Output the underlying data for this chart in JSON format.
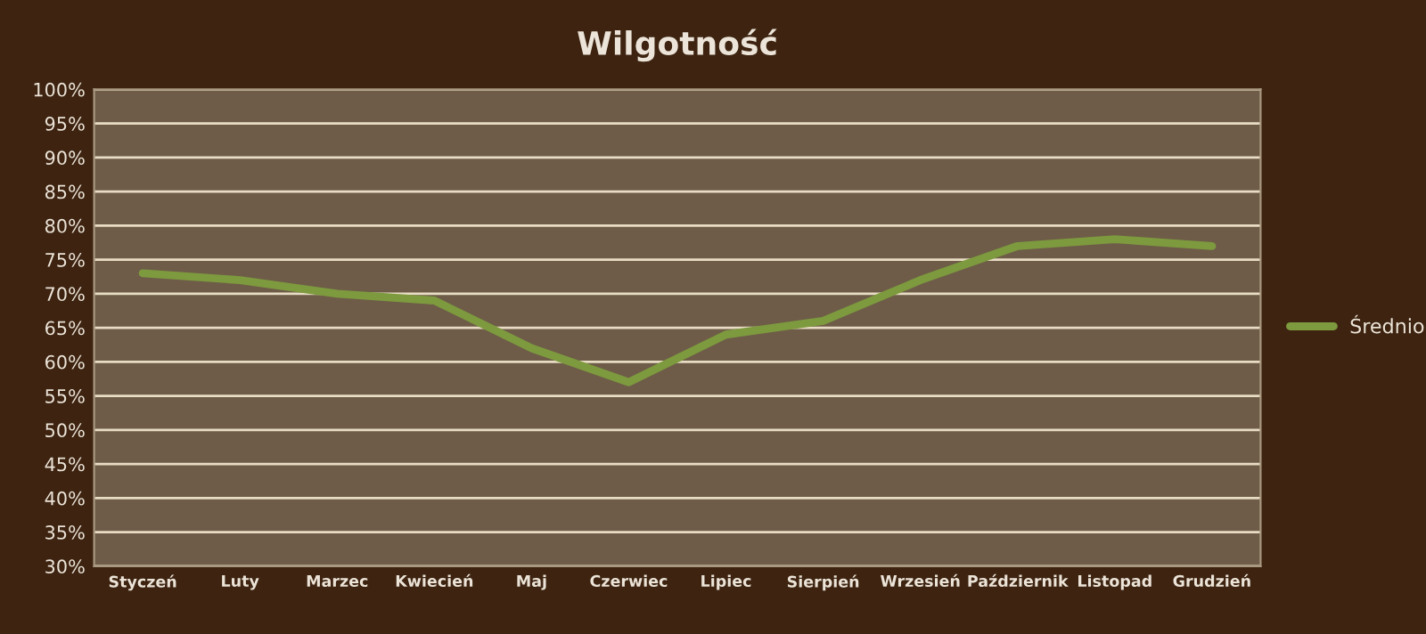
{
  "chart_data": {
    "type": "line",
    "title": "Wilgotność",
    "categories": [
      "Styczeń",
      "Luty",
      "Marzec",
      "Kwiecień",
      "Maj",
      "Czerwiec",
      "Lipiec",
      "Sierpień",
      "Wrzesień",
      "Październik",
      "Listopad",
      "Grudzień"
    ],
    "series": [
      {
        "name": "Średnio",
        "color": "#7d9a3e",
        "values": [
          73,
          72,
          70,
          69,
          62,
          57,
          64,
          66,
          72,
          77,
          78,
          77
        ]
      }
    ],
    "ylim": [
      30,
      100
    ],
    "yticks": [
      {
        "value": 30,
        "label": "30%"
      },
      {
        "value": 35,
        "label": "35%"
      },
      {
        "value": 40,
        "label": "40%"
      },
      {
        "value": 45,
        "label": "45%"
      },
      {
        "value": 50,
        "label": "50%"
      },
      {
        "value": 55,
        "label": "55%"
      },
      {
        "value": 60,
        "label": "60%"
      },
      {
        "value": 65,
        "label": "65%"
      },
      {
        "value": 70,
        "label": "70%"
      },
      {
        "value": 75,
        "label": "75%"
      },
      {
        "value": 80,
        "label": "80%"
      },
      {
        "value": 85,
        "label": "85%"
      },
      {
        "value": 90,
        "label": "90%"
      },
      {
        "value": 95,
        "label": "95%"
      },
      {
        "value": 100,
        "label": "100%"
      }
    ],
    "grid": "y",
    "legend": "right",
    "line_style": "solid",
    "marker": "none"
  }
}
